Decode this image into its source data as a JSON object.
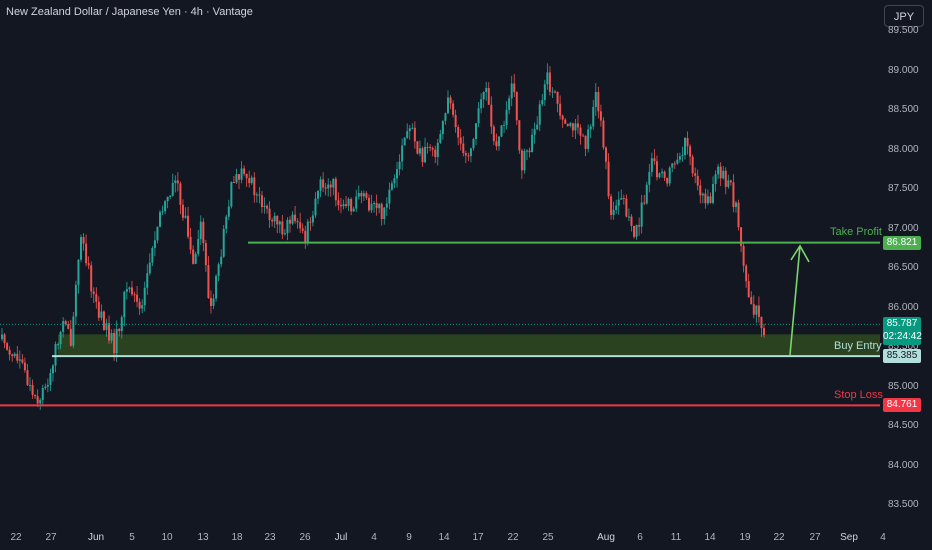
{
  "header": {
    "title": "New Zealand Dollar / Japanese Yen · 4h · Vantage",
    "currency_button": "JPY"
  },
  "colors": {
    "background": "#131722",
    "up": "#26a69a",
    "down": "#ef5350",
    "take_profit": "#4caf50",
    "stop_loss": "#f23645",
    "buy_entry": "#b2dfdb",
    "zone": "#2f4a1f",
    "current_price": "#089981"
  },
  "chart_data": {
    "type": "candlestick",
    "title": "New Zealand Dollar / Japanese Yen · 4h · Vantage",
    "y_ticks": [
      "89.500",
      "89.000",
      "88.500",
      "88.000",
      "87.500",
      "87.000",
      "86.500",
      "86.000",
      "85.500",
      "85.000",
      "84.500",
      "84.000",
      "83.500"
    ],
    "x_ticks": [
      "22",
      "27",
      "Jun",
      "5",
      "10",
      "13",
      "18",
      "23",
      "26",
      "Jul",
      "4",
      "9",
      "14",
      "17",
      "22",
      "25",
      "Aug",
      "6",
      "11",
      "14",
      "19",
      "22",
      "27",
      "Sep",
      "4"
    ],
    "ylim": [
      83.15,
      89.65
    ],
    "close_path": [
      [
        0,
        85.6
      ],
      [
        4,
        85.3
      ],
      [
        8,
        84.85
      ],
      [
        10,
        84.95
      ],
      [
        14,
        85.8
      ],
      [
        16,
        85.6
      ],
      [
        18,
        86.9
      ],
      [
        21,
        86.2
      ],
      [
        23,
        85.85
      ],
      [
        26,
        85.5
      ],
      [
        29,
        86.3
      ],
      [
        32,
        86.0
      ],
      [
        35,
        86.8
      ],
      [
        38,
        87.4
      ],
      [
        40,
        87.6
      ],
      [
        42,
        87.2
      ],
      [
        44,
        86.6
      ],
      [
        46,
        87.1
      ],
      [
        48,
        85.95
      ],
      [
        50,
        86.5
      ],
      [
        53,
        87.5
      ],
      [
        56,
        87.8
      ],
      [
        58,
        87.5
      ],
      [
        61,
        87.2
      ],
      [
        64,
        87.0
      ],
      [
        67,
        87.1
      ],
      [
        70,
        86.9
      ],
      [
        73,
        87.5
      ],
      [
        76,
        87.6
      ],
      [
        79,
        87.2
      ],
      [
        82,
        87.4
      ],
      [
        86,
        87.3
      ],
      [
        88,
        87.2
      ],
      [
        91,
        87.8
      ],
      [
        94,
        88.3
      ],
      [
        97,
        87.9
      ],
      [
        100,
        88.0
      ],
      [
        103,
        88.6
      ],
      [
        106,
        88.1
      ],
      [
        108,
        87.9
      ],
      [
        110,
        88.5
      ],
      [
        112,
        88.8
      ],
      [
        114,
        87.9
      ],
      [
        116,
        88.4
      ],
      [
        118,
        88.8
      ],
      [
        120,
        87.8
      ],
      [
        123,
        88.2
      ],
      [
        126,
        88.9
      ],
      [
        129,
        88.5
      ],
      [
        132,
        88.3
      ],
      [
        135,
        88.0
      ],
      [
        137,
        88.8
      ],
      [
        139,
        88.0
      ],
      [
        141,
        87.1
      ],
      [
        143,
        87.4
      ],
      [
        146,
        86.9
      ],
      [
        148,
        87.3
      ],
      [
        150,
        87.8
      ],
      [
        153,
        87.6
      ],
      [
        156,
        87.9
      ],
      [
        158,
        88.1
      ],
      [
        160,
        87.6
      ],
      [
        163,
        87.3
      ],
      [
        165,
        87.7
      ],
      [
        168,
        87.6
      ],
      [
        170,
        87.1
      ],
      [
        172,
        86.2
      ],
      [
        173,
        85.95
      ],
      [
        175,
        85.9
      ],
      [
        176,
        85.75
      ]
    ],
    "last_price": "85.787",
    "countdown": "02:24:42",
    "levels": [
      {
        "name": "Take Profit",
        "value": "86.821",
        "price": 86.821
      },
      {
        "name": "Buy Entry",
        "value": "85.385",
        "price": 85.385
      },
      {
        "name": "Stop Loss",
        "value": "84.761",
        "price": 84.761
      }
    ],
    "buy_zone": {
      "low": 85.385,
      "high": 85.66
    },
    "arrow": {
      "from_price": 85.4,
      "to_price": 86.83
    }
  }
}
